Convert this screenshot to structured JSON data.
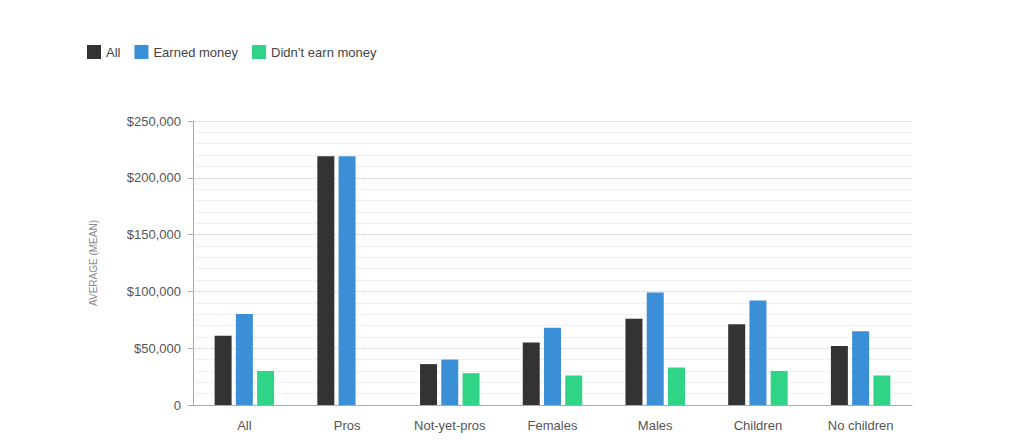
{
  "chart_data": {
    "type": "bar",
    "y_label": "AVERAGE (MEAN)",
    "categories": [
      "All",
      "Pros",
      "Not-yet-pros",
      "Females",
      "Males",
      "Children",
      "No children"
    ],
    "series": [
      {
        "name": "All",
        "color": "#333333",
        "values": [
          61000,
          219000,
          36000,
          55000,
          76000,
          71000,
          52000
        ]
      },
      {
        "name": "Earned money",
        "color": "#3a8fd6",
        "values": [
          80000,
          219000,
          40000,
          68000,
          99000,
          92000,
          65000
        ]
      },
      {
        "name": "Didn’t earn money",
        "color": "#2fd487",
        "values": [
          30000,
          null,
          28000,
          26000,
          33000,
          30000,
          26000
        ]
      }
    ],
    "ylim": [
      0,
      250000
    ],
    "yticks": [
      0,
      {
        "value": 50000,
        "label": "$50,000"
      },
      {
        "value": 100000,
        "label": "$100,000"
      },
      {
        "value": 150000,
        "label": "$150,000"
      },
      {
        "value": 200000,
        "label": "$200,000"
      },
      {
        "value": 250000,
        "label": "$250,000"
      }
    ],
    "grid": true,
    "legend": "top-left"
  }
}
